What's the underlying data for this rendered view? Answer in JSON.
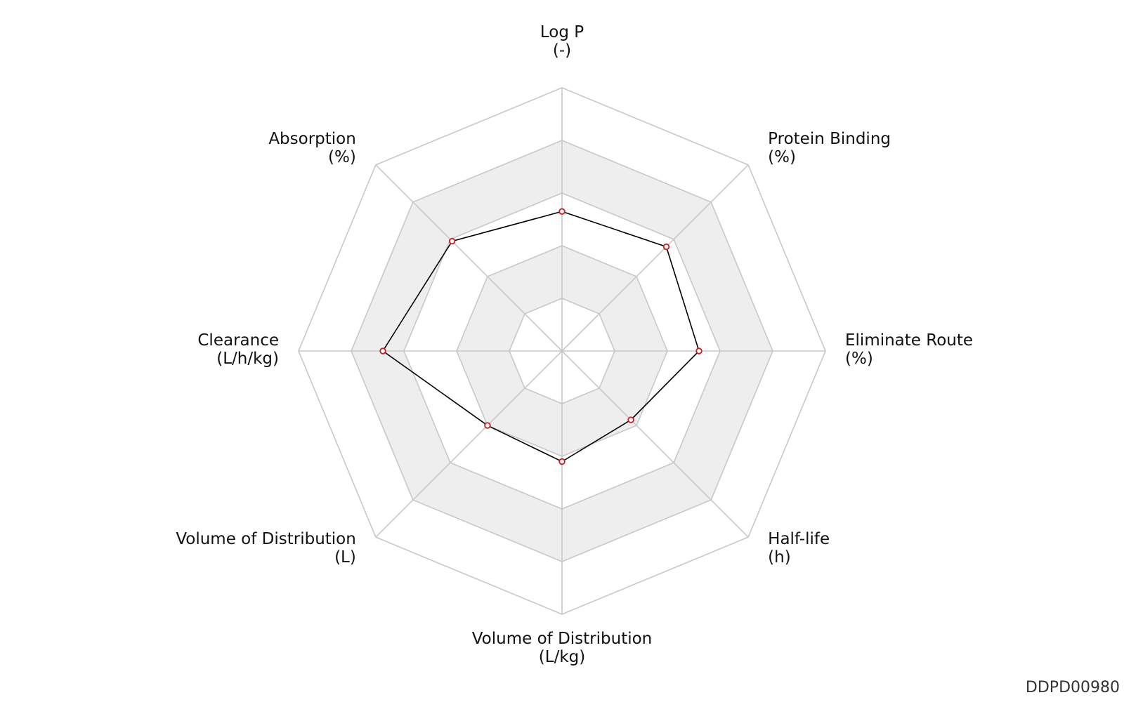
{
  "figure_id": "DDPD00980",
  "chart_data": {
    "type": "radar",
    "axes": [
      {
        "name": "Log P",
        "unit": "(-)"
      },
      {
        "name": "Protein Binding",
        "unit": "(%)"
      },
      {
        "name": "Eliminate Route",
        "unit": "(%)"
      },
      {
        "name": "Half-life",
        "unit": "(h)"
      },
      {
        "name": "Volume of Distribution",
        "unit": "(L/kg)"
      },
      {
        "name": "Volume of Distribution",
        "unit": "(L)"
      },
      {
        "name": "Clearance",
        "unit": "(L/h/kg)"
      },
      {
        "name": "Absorption",
        "unit": "(%)"
      }
    ],
    "rings": 5,
    "range": [
      0,
      5
    ],
    "values": [
      2.65,
      2.8,
      2.6,
      1.85,
      2.1,
      2.0,
      3.4,
      2.95
    ],
    "colors": {
      "line": "#000000",
      "marker_edge": "#cc1f1f",
      "marker_fill": "#ffffff",
      "grid": "#c8c8c8",
      "band": "#eeeeee"
    }
  }
}
